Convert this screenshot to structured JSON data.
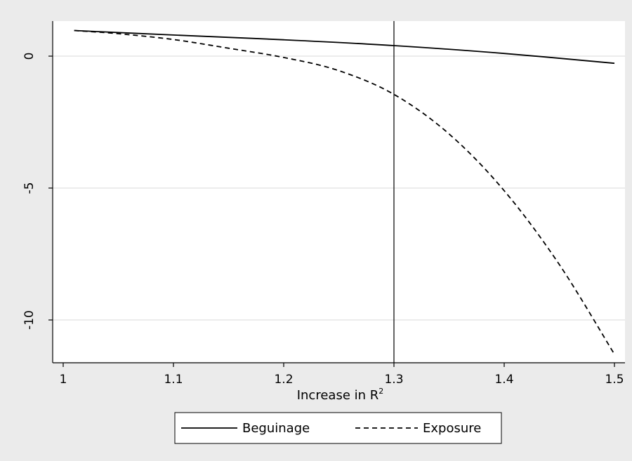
{
  "chart_data": {
    "type": "line",
    "title": "",
    "xlabel_main": "Increase in R",
    "xlabel_sup": "2",
    "ylabel": "",
    "xlim": [
      1.0,
      1.5
    ],
    "ylim": [
      -11.7,
      1.3
    ],
    "x_ticks": [
      {
        "value": 1,
        "label": "1"
      },
      {
        "value": 1.1,
        "label": "1.1"
      },
      {
        "value": 1.2,
        "label": "1.2"
      },
      {
        "value": 1.3,
        "label": "1.3"
      },
      {
        "value": 1.4,
        "label": "1.4"
      },
      {
        "value": 1.5,
        "label": "1.5"
      }
    ],
    "y_ticks": [
      {
        "value": 0,
        "label": "0"
      },
      {
        "value": -5,
        "label": "-5"
      },
      {
        "value": -10,
        "label": "-10"
      }
    ],
    "grid": "horizontal",
    "reference_line_x": 1.3,
    "legend_position": "bottom",
    "series": [
      {
        "name": "Beguinage",
        "style": "solid",
        "color": "#000000",
        "x": [
          1.01,
          1.1,
          1.2,
          1.3,
          1.4,
          1.5
        ],
        "y": [
          0.97,
          0.8,
          0.62,
          0.4,
          0.1,
          -0.27
        ]
      },
      {
        "name": "Exposure",
        "style": "dashed",
        "color": "#000000",
        "x": [
          1.01,
          1.05,
          1.1,
          1.15,
          1.2,
          1.25,
          1.3,
          1.35,
          1.4,
          1.45,
          1.5
        ],
        "y": [
          0.97,
          0.85,
          0.63,
          0.3,
          -0.05,
          -0.55,
          -1.45,
          -2.95,
          -5.1,
          -7.9,
          -11.3
        ]
      }
    ]
  }
}
